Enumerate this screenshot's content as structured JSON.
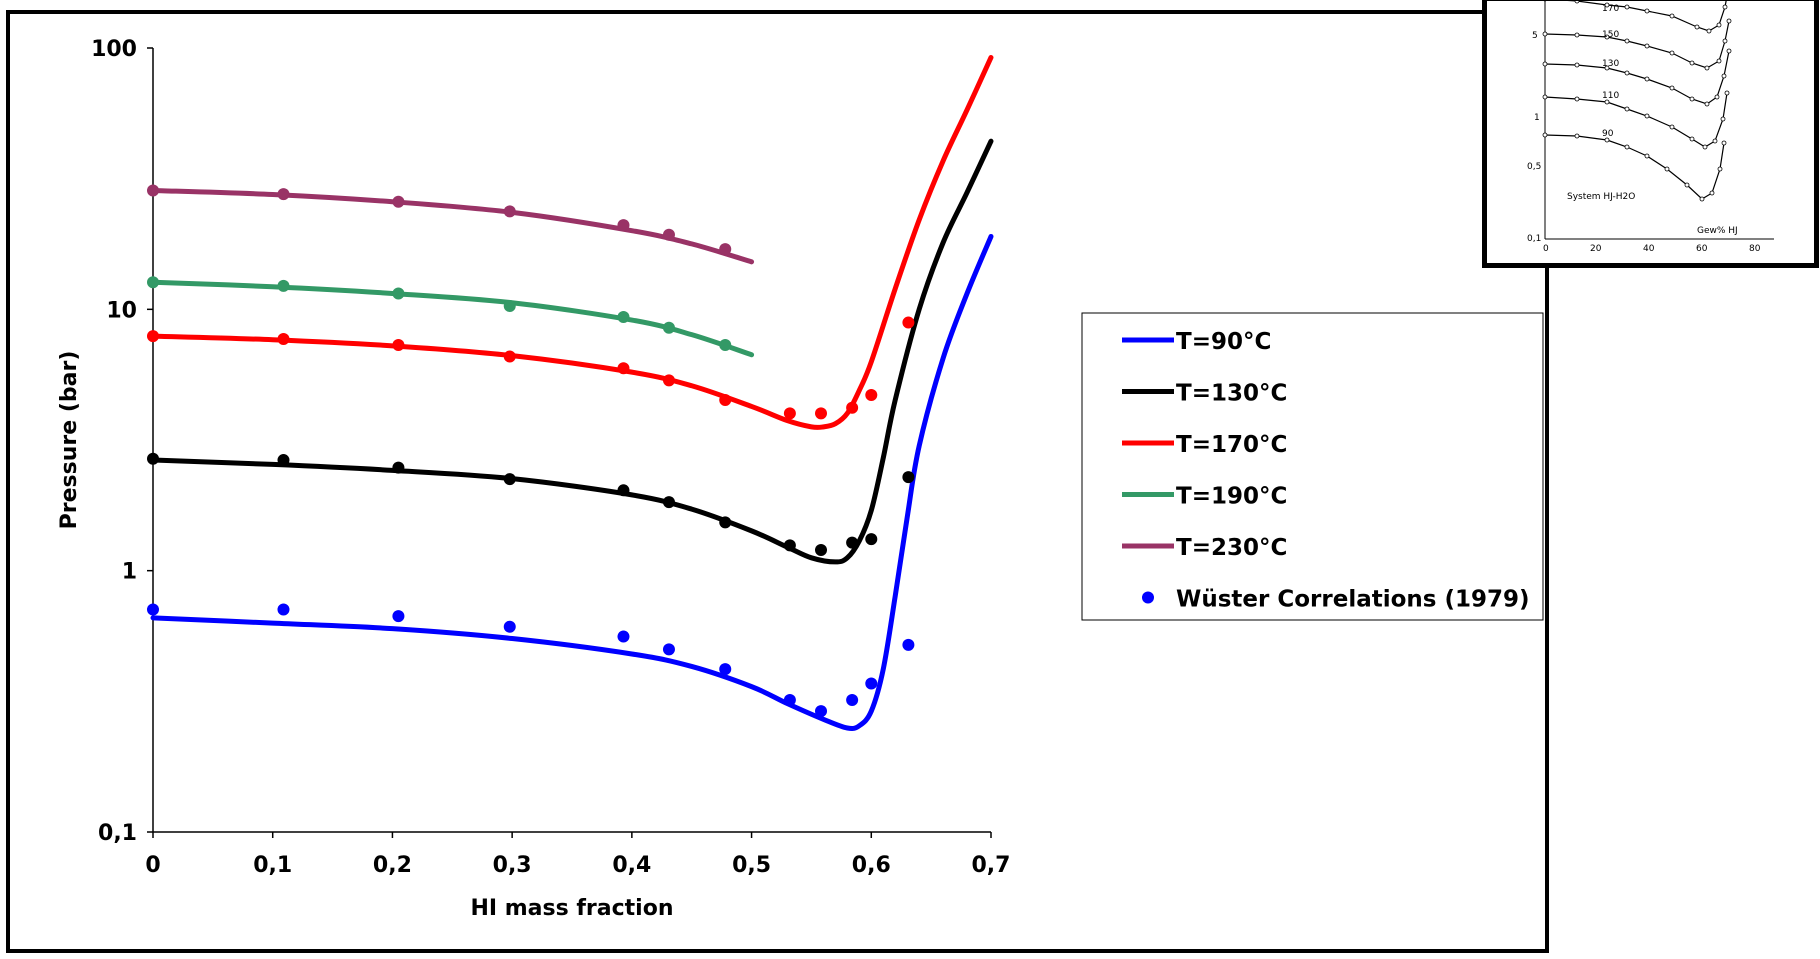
{
  "chart_data": {
    "type": "line",
    "title": "",
    "xlabel": "HI mass fraction",
    "ylabel": "Pressure (bar)",
    "xlim": [
      0,
      0.7
    ],
    "ylim": [
      0.1,
      100
    ],
    "yscale": "log",
    "x_ticks": [
      "0",
      "0,1",
      "0,2",
      "0,3",
      "0,4",
      "0,5",
      "0,6",
      "0,7"
    ],
    "y_ticks": [
      "0,1",
      "1",
      "10",
      "100"
    ],
    "legend_position": "right",
    "series": [
      {
        "name": "T=90°C",
        "color": "#0000ff",
        "x": [
          0,
          0.1,
          0.2,
          0.3,
          0.4,
          0.45,
          0.5,
          0.53,
          0.56,
          0.58,
          0.59,
          0.6,
          0.61,
          0.62,
          0.63,
          0.64,
          0.66,
          0.68,
          0.7
        ],
        "y": [
          0.66,
          0.63,
          0.6,
          0.55,
          0.48,
          0.43,
          0.36,
          0.31,
          0.27,
          0.25,
          0.255,
          0.29,
          0.42,
          0.8,
          1.6,
          3.0,
          6.5,
          11.5,
          19
        ]
      },
      {
        "name": "T=130°C",
        "color": "#000000",
        "x": [
          0,
          0.1,
          0.2,
          0.3,
          0.4,
          0.45,
          0.5,
          0.53,
          0.55,
          0.57,
          0.58,
          0.59,
          0.6,
          0.61,
          0.62,
          0.64,
          0.66,
          0.68,
          0.7
        ],
        "y": [
          2.65,
          2.55,
          2.42,
          2.25,
          1.95,
          1.72,
          1.42,
          1.23,
          1.12,
          1.08,
          1.12,
          1.3,
          1.7,
          2.7,
          4.5,
          10,
          18,
          28,
          44
        ]
      },
      {
        "name": "T=170°C",
        "color": "#ff0000",
        "x": [
          0,
          0.1,
          0.2,
          0.3,
          0.4,
          0.45,
          0.5,
          0.53,
          0.55,
          0.56,
          0.57,
          0.58,
          0.59,
          0.6,
          0.62,
          0.64,
          0.66,
          0.68,
          0.7
        ],
        "y": [
          7.9,
          7.65,
          7.25,
          6.65,
          5.75,
          5.1,
          4.25,
          3.75,
          3.55,
          3.55,
          3.65,
          4.0,
          4.9,
          6.3,
          12,
          22,
          37,
          58,
          92
        ]
      },
      {
        "name": "T=190°C",
        "color": "#339966",
        "x": [
          0,
          0.1,
          0.2,
          0.3,
          0.4,
          0.45,
          0.5
        ],
        "y": [
          12.7,
          12.2,
          11.5,
          10.6,
          9.1,
          8.0,
          6.7
        ]
      },
      {
        "name": "T=230°C",
        "color": "#993366",
        "x": [
          0,
          0.1,
          0.2,
          0.3,
          0.4,
          0.45,
          0.5
        ],
        "y": [
          28.5,
          27.5,
          25.8,
          23.5,
          20.0,
          17.8,
          15.2
        ]
      }
    ],
    "points": {
      "name": "Wüster Correlations (1979)",
      "marker_color": "#0000ff",
      "groups": [
        {
          "color": "#0000ff",
          "x": [
            0,
            0.109,
            0.205,
            0.298,
            0.393,
            0.431,
            0.478,
            0.532,
            0.558,
            0.584,
            0.6,
            0.631
          ],
          "y": [
            0.71,
            0.71,
            0.67,
            0.61,
            0.56,
            0.5,
            0.42,
            0.32,
            0.29,
            0.32,
            0.37,
            0.52
          ]
        },
        {
          "color": "#000000",
          "x": [
            0,
            0.109,
            0.205,
            0.298,
            0.393,
            0.431,
            0.478,
            0.532,
            0.558,
            0.584,
            0.6,
            0.631
          ],
          "y": [
            2.68,
            2.65,
            2.48,
            2.24,
            2.03,
            1.83,
            1.53,
            1.25,
            1.2,
            1.28,
            1.32,
            2.28
          ]
        },
        {
          "color": "#ff0000",
          "x": [
            0,
            0.109,
            0.205,
            0.298,
            0.393,
            0.431,
            0.478,
            0.532,
            0.558,
            0.584,
            0.6,
            0.631
          ],
          "y": [
            7.9,
            7.7,
            7.3,
            6.6,
            5.95,
            5.35,
            4.5,
            4.0,
            4.0,
            4.2,
            4.7,
            8.9
          ]
        },
        {
          "color": "#339966",
          "x": [
            0,
            0.109,
            0.205,
            0.298,
            0.393,
            0.431,
            0.478
          ],
          "y": [
            12.7,
            12.3,
            11.5,
            10.3,
            9.35,
            8.5,
            7.3
          ]
        },
        {
          "color": "#993366",
          "x": [
            0,
            0.109,
            0.205,
            0.298,
            0.393,
            0.431,
            0.478
          ],
          "y": [
            28.5,
            27.6,
            25.8,
            23.7,
            21.0,
            19.3,
            17.0
          ]
        }
      ]
    }
  },
  "inset": {
    "y_labels": [
      "5",
      "1",
      "0,5",
      "0,1"
    ],
    "x_labels": [
      "0",
      "20",
      "40",
      "60",
      "80"
    ],
    "curve_labels": [
      "170",
      "150",
      "130",
      "110",
      "90"
    ],
    "system_label": "System  HJ-H2O",
    "x_axis_label": "Gew% HJ"
  }
}
